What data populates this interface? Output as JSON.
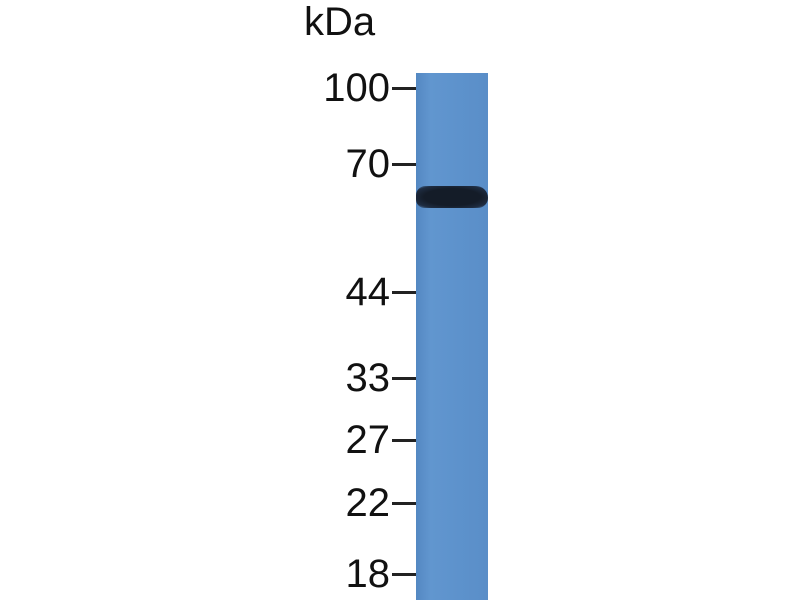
{
  "unit_label": "kDa",
  "markers": [
    {
      "label": "100",
      "kda": 100
    },
    {
      "label": "70",
      "kda": 70
    },
    {
      "label": "44",
      "kda": 44
    },
    {
      "label": "33",
      "kda": 33
    },
    {
      "label": "27",
      "kda": 27
    },
    {
      "label": "22",
      "kda": 22
    },
    {
      "label": "18",
      "kda": 18
    }
  ],
  "lanes": [
    {
      "bands": [
        {
          "kda": 62
        }
      ]
    }
  ],
  "colors": {
    "membrane": "#5b8fc9",
    "band": "#141c28",
    "text": "#111111"
  }
}
